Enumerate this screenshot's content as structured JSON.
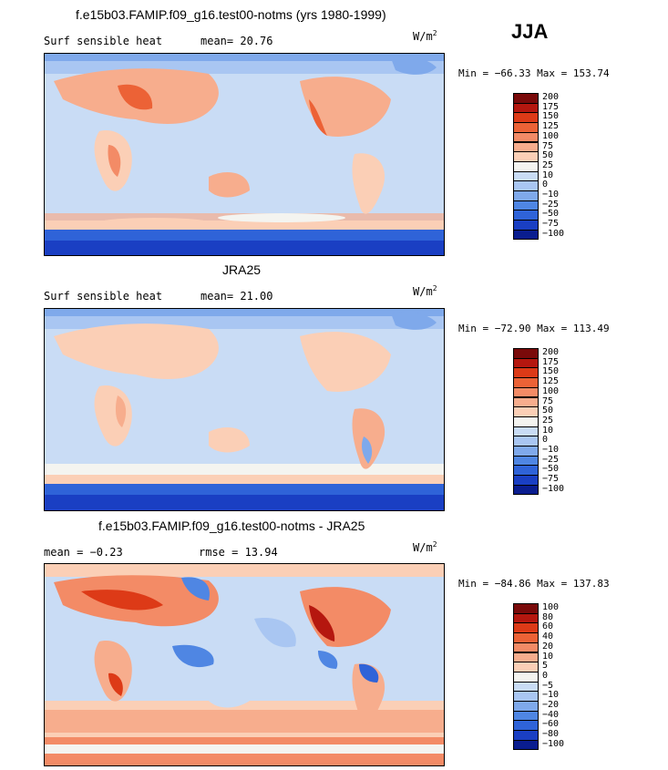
{
  "season": "JJA",
  "panels": [
    {
      "title": "f.e15b03.FAMIP.f09_g16.test00-notms (yrs 1980-1999)",
      "left_label": "Surf sensible heat",
      "stat": "mean=  20.76",
      "units_base": "W/m",
      "units_exp": "2",
      "minmax": "Min = −66.33 Max = 153.74",
      "colorbar_labels": [
        "200",
        "175",
        "150",
        "125",
        "100",
        "75",
        "50",
        "25",
        "10",
        "0",
        "−10",
        "−25",
        "−50",
        "−75",
        "−100"
      ],
      "colorbar_colors": [
        "#7a0a0a",
        "#b5170f",
        "#dd3a17",
        "#ec6236",
        "#f38b66",
        "#f7ad8d",
        "#fbcfb6",
        "#f4f4f0",
        "#c9dcf5",
        "#a9c6f2",
        "#7fa9eb",
        "#4f86e3",
        "#2f63d8",
        "#1a3fc3",
        "#0a1d8f"
      ]
    },
    {
      "title": "JRA25",
      "left_label": "Surf sensible heat",
      "stat": "mean=  21.00",
      "units_base": "W/m",
      "units_exp": "2",
      "minmax": "Min = −72.90 Max = 113.49",
      "colorbar_labels": [
        "200",
        "175",
        "150",
        "125",
        "100",
        "75",
        "50",
        "25",
        "10",
        "0",
        "−10",
        "−25",
        "−50",
        "−75",
        "−100"
      ],
      "colorbar_colors": [
        "#7a0a0a",
        "#b5170f",
        "#dd3a17",
        "#ec6236",
        "#f38b66",
        "#f7ad8d",
        "#fbcfb6",
        "#f4f4f0",
        "#c9dcf5",
        "#a9c6f2",
        "#7fa9eb",
        "#4f86e3",
        "#2f63d8",
        "#1a3fc3",
        "#0a1d8f"
      ]
    },
    {
      "title": "f.e15b03.FAMIP.f09_g16.test00-notms - JRA25",
      "left_label": "mean =  −0.23",
      "stat": "rmse =   13.94",
      "units_base": "W/m",
      "units_exp": "2",
      "minmax": "Min = −84.86 Max = 137.83",
      "colorbar_labels": [
        "100",
        "80",
        "60",
        "40",
        "20",
        "10",
        "5",
        "0",
        "−5",
        "−10",
        "−20",
        "−40",
        "−60",
        "−80",
        "−100"
      ],
      "colorbar_colors": [
        "#7a0a0a",
        "#b5170f",
        "#dd3a17",
        "#ec6236",
        "#f38b66",
        "#f7ad8d",
        "#fbcfb6",
        "#f4f4f0",
        "#c9dcf5",
        "#a9c6f2",
        "#7fa9eb",
        "#4f86e3",
        "#2f63d8",
        "#1a3fc3",
        "#0a1d8f"
      ]
    }
  ],
  "chart_data": [
    {
      "type": "heatmap",
      "title": "f.e15b03.FAMIP.f09_g16.test00-notms (yrs 1980-1999)",
      "variable": "Surf sensible heat",
      "units": "W/m2",
      "mean": 20.76,
      "min": -66.33,
      "max": 153.74,
      "levels": [
        -100,
        -75,
        -50,
        -25,
        -10,
        0,
        10,
        25,
        50,
        75,
        100,
        125,
        150,
        175,
        200
      ]
    },
    {
      "type": "heatmap",
      "title": "JRA25",
      "variable": "Surf sensible heat",
      "units": "W/m2",
      "mean": 21.0,
      "min": -72.9,
      "max": 113.49,
      "levels": [
        -100,
        -75,
        -50,
        -25,
        -10,
        0,
        10,
        25,
        50,
        75,
        100,
        125,
        150,
        175,
        200
      ]
    },
    {
      "type": "heatmap",
      "title": "f.e15b03.FAMIP.f09_g16.test00-notms - JRA25",
      "units": "W/m2",
      "mean": -0.23,
      "rmse": 13.94,
      "min": -84.86,
      "max": 137.83,
      "levels": [
        -100,
        -80,
        -60,
        -40,
        -20,
        -10,
        -5,
        0,
        5,
        10,
        20,
        40,
        60,
        80,
        100
      ]
    }
  ]
}
